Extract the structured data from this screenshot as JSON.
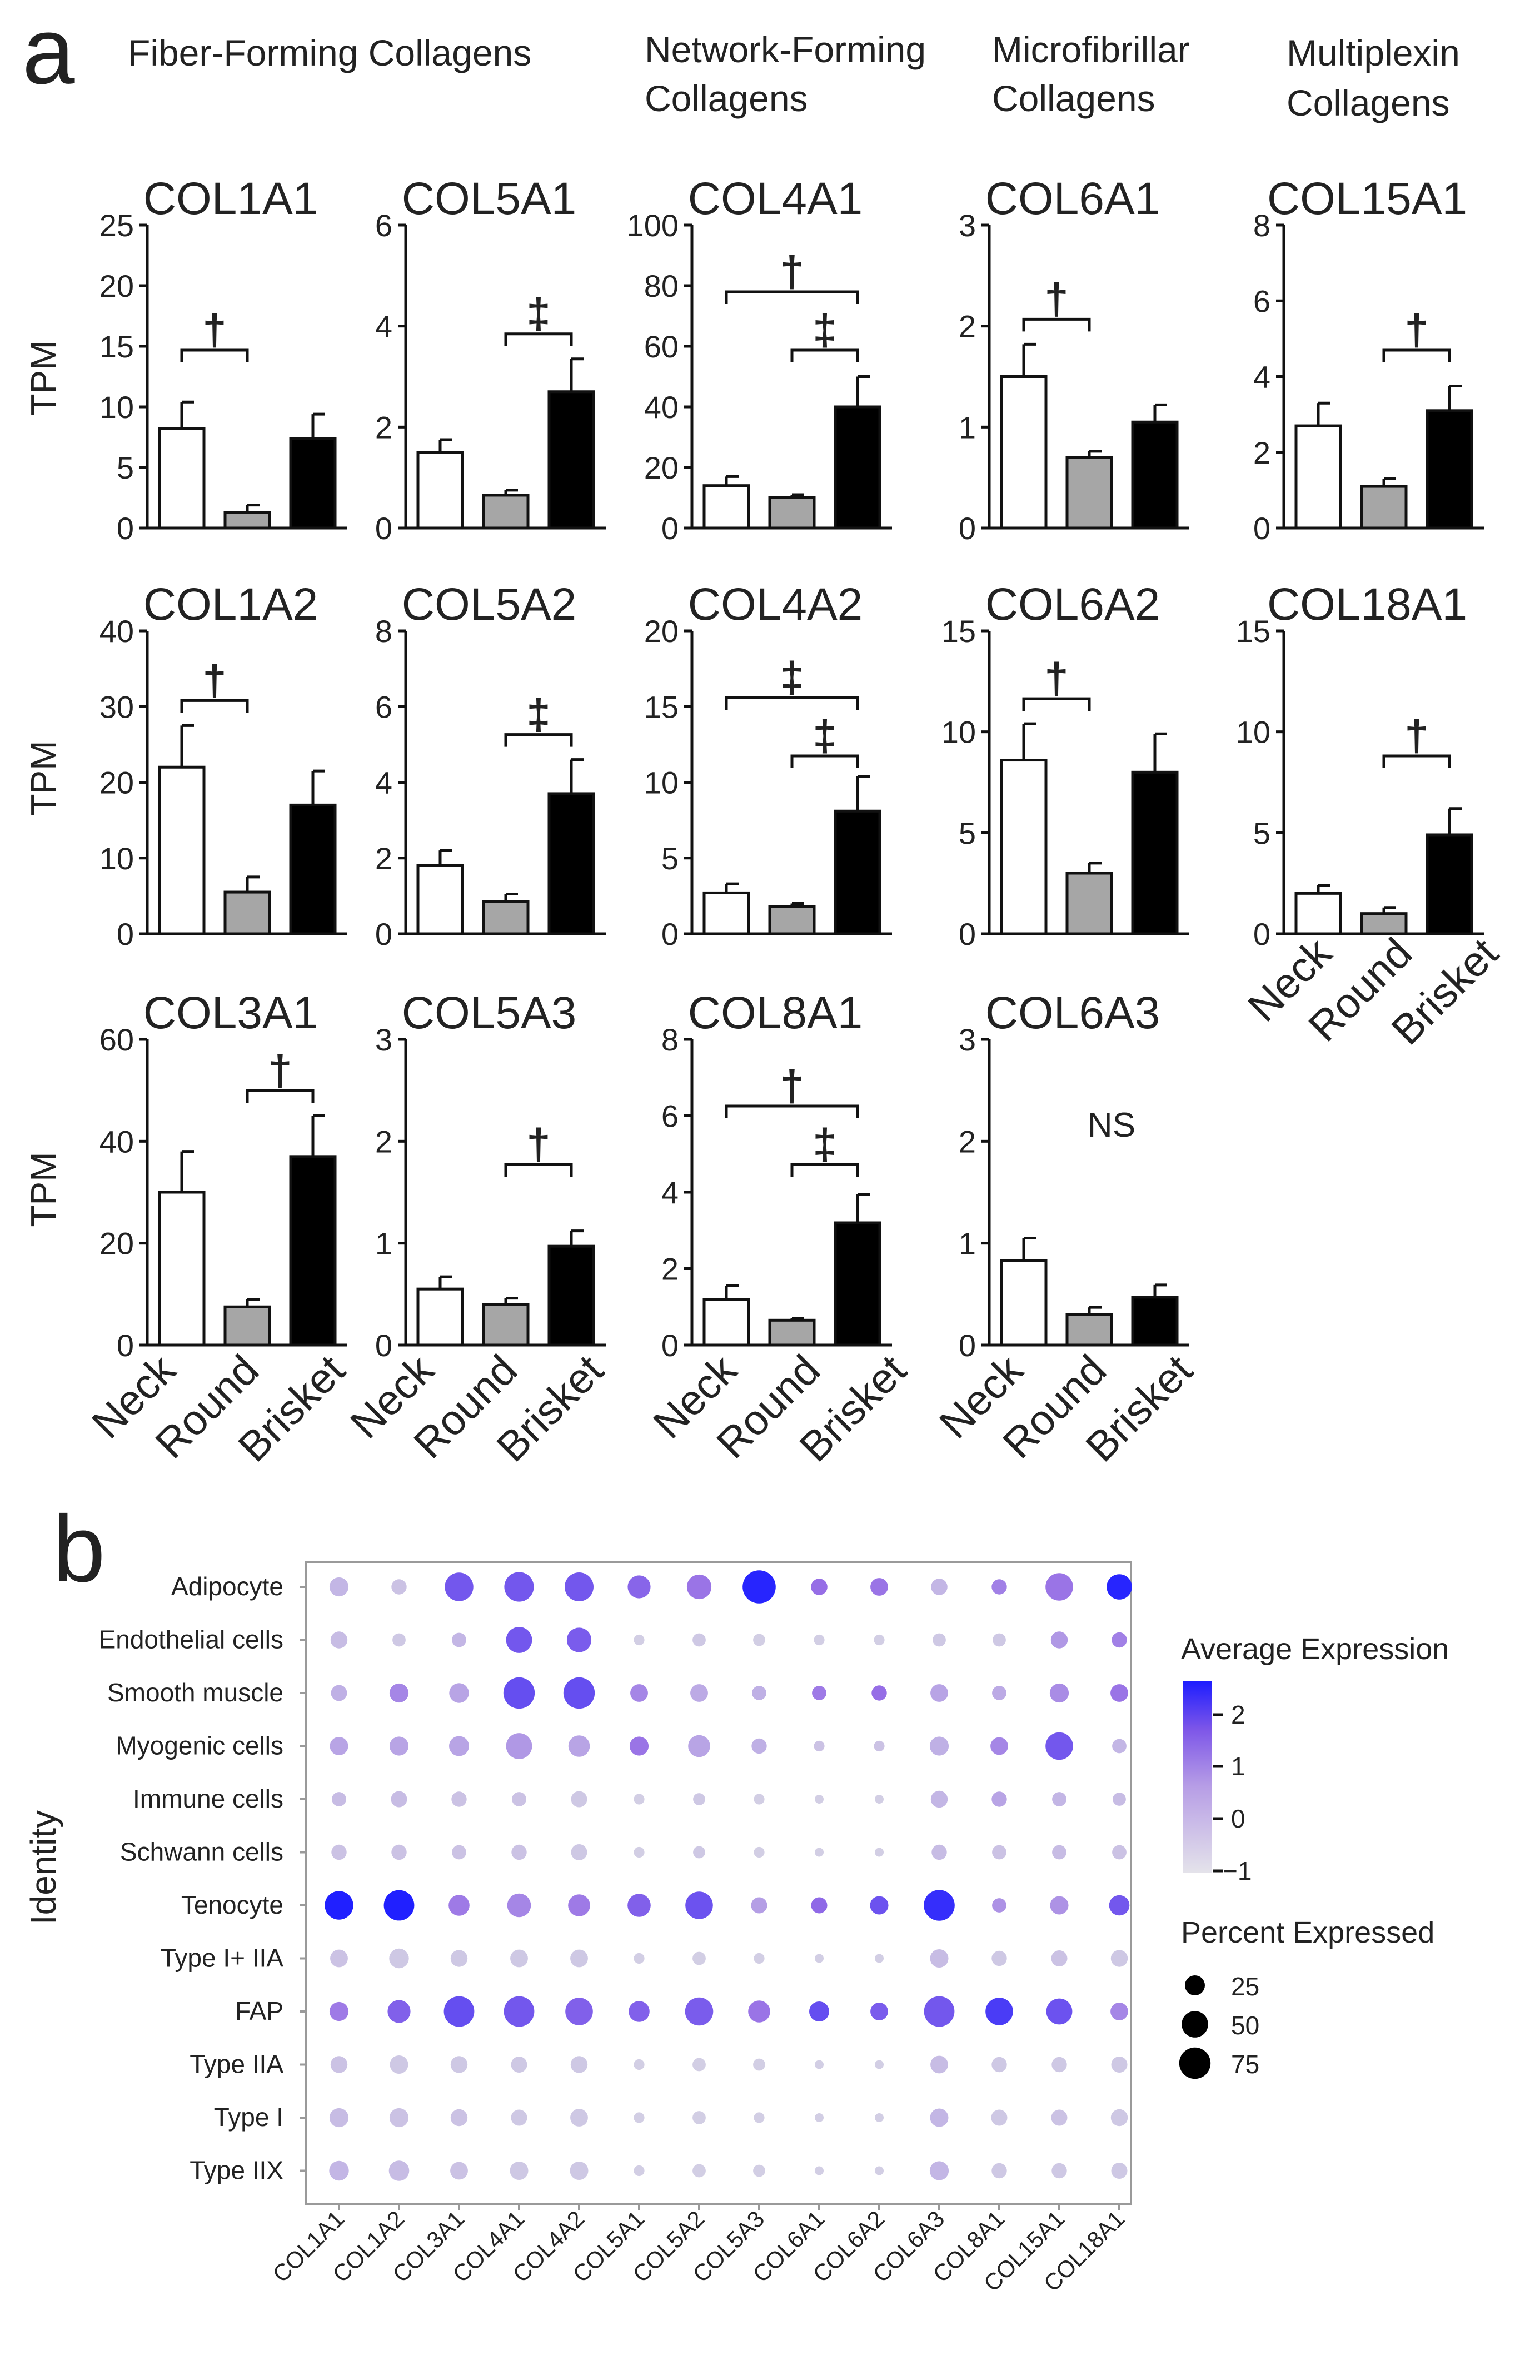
{
  "colors": {
    "neck": "#ffffff",
    "round": "#a6a6a6",
    "brisket": "#000000",
    "low": "#d6d4e4",
    "high": "#2020ff"
  },
  "panel_a": {
    "letter": "a",
    "group_titles": [
      {
        "lines": [
          "Fiber-Forming Collagens"
        ]
      },
      {
        "lines": [
          "Network-Forming",
          "Collagens"
        ]
      },
      {
        "lines": [
          "Microfibrillar",
          "Collagens"
        ]
      },
      {
        "lines": [
          "Multiplexin",
          "Collagens"
        ]
      }
    ],
    "y_label": "TPM",
    "categories": [
      "Neck",
      "Round",
      "Brisket"
    ],
    "ns_label": "NS"
  },
  "panel_b": {
    "letter": "b",
    "y_label": "Identity",
    "legend_color_title": "Average Expression",
    "legend_color_ticks": [
      "2",
      "1",
      "0",
      "−1"
    ],
    "legend_size_title": "Percent Expressed",
    "legend_size_values": [
      "25",
      "50",
      "75"
    ]
  },
  "chart_data": [
    {
      "type": "bar",
      "title": "COL1A1",
      "categories": [
        "Neck",
        "Round",
        "Brisket"
      ],
      "values": [
        8.2,
        1.3,
        7.4
      ],
      "errors": [
        2.2,
        0.6,
        2.0
      ],
      "ylim": [
        0,
        25
      ],
      "yticks": [
        0,
        5,
        10,
        15,
        20,
        25
      ],
      "brackets": [
        {
          "from": 0,
          "to": 1,
          "symbol": "†"
        }
      ]
    },
    {
      "type": "bar",
      "title": "COL5A1",
      "categories": [
        "Neck",
        "Round",
        "Brisket"
      ],
      "values": [
        1.5,
        0.65,
        2.7
      ],
      "errors": [
        0.25,
        0.1,
        0.65
      ],
      "ylim": [
        0,
        6
      ],
      "yticks": [
        0,
        2,
        4,
        6
      ],
      "brackets": [
        {
          "from": 1,
          "to": 2,
          "symbol": "‡"
        }
      ]
    },
    {
      "type": "bar",
      "title": "COL4A1",
      "categories": [
        "Neck",
        "Round",
        "Brisket"
      ],
      "values": [
        14,
        10,
        40
      ],
      "errors": [
        3,
        1,
        10
      ],
      "ylim": [
        0,
        100
      ],
      "yticks": [
        0,
        20,
        40,
        60,
        80,
        100
      ],
      "brackets": [
        {
          "from": 0,
          "to": 2,
          "symbol": "†"
        },
        {
          "from": 1,
          "to": 2,
          "symbol": "‡"
        }
      ]
    },
    {
      "type": "bar",
      "title": "COL6A1",
      "categories": [
        "Neck",
        "Round",
        "Brisket"
      ],
      "values": [
        1.5,
        0.7,
        1.05
      ],
      "errors": [
        0.32,
        0.06,
        0.17
      ],
      "ylim": [
        0,
        3
      ],
      "yticks": [
        0,
        1,
        2,
        3
      ],
      "brackets": [
        {
          "from": 0,
          "to": 1,
          "symbol": "†"
        }
      ]
    },
    {
      "type": "bar",
      "title": "COL15A1",
      "categories": [
        "Neck",
        "Round",
        "Brisket"
      ],
      "values": [
        2.7,
        1.1,
        3.1
      ],
      "errors": [
        0.6,
        0.2,
        0.65
      ],
      "ylim": [
        0,
        8
      ],
      "yticks": [
        0,
        2,
        4,
        6,
        8
      ],
      "brackets": [
        {
          "from": 1,
          "to": 2,
          "symbol": "†"
        }
      ]
    },
    {
      "type": "bar",
      "title": "COL1A2",
      "categories": [
        "Neck",
        "Round",
        "Brisket"
      ],
      "values": [
        22,
        5.5,
        17
      ],
      "errors": [
        5.5,
        2,
        4.5
      ],
      "ylim": [
        0,
        40
      ],
      "yticks": [
        0,
        10,
        20,
        30,
        40
      ],
      "brackets": [
        {
          "from": 0,
          "to": 1,
          "symbol": "†"
        }
      ]
    },
    {
      "type": "bar",
      "title": "COL5A2",
      "categories": [
        "Neck",
        "Round",
        "Brisket"
      ],
      "values": [
        1.8,
        0.85,
        3.7
      ],
      "errors": [
        0.4,
        0.2,
        0.9
      ],
      "ylim": [
        0,
        8
      ],
      "yticks": [
        0,
        2,
        4,
        6,
        8
      ],
      "brackets": [
        {
          "from": 1,
          "to": 2,
          "symbol": "‡"
        }
      ]
    },
    {
      "type": "bar",
      "title": "COL4A2",
      "categories": [
        "Neck",
        "Round",
        "Brisket"
      ],
      "values": [
        2.7,
        1.8,
        8.1
      ],
      "errors": [
        0.6,
        0.2,
        2.3
      ],
      "ylim": [
        0,
        20
      ],
      "yticks": [
        0,
        5,
        10,
        15,
        20
      ],
      "brackets": [
        {
          "from": 0,
          "to": 2,
          "symbol": "‡"
        },
        {
          "from": 1,
          "to": 2,
          "symbol": "‡"
        }
      ]
    },
    {
      "type": "bar",
      "title": "COL6A2",
      "categories": [
        "Neck",
        "Round",
        "Brisket"
      ],
      "values": [
        8.6,
        3.0,
        8.0
      ],
      "errors": [
        1.8,
        0.5,
        1.9
      ],
      "ylim": [
        0,
        15
      ],
      "yticks": [
        0,
        5,
        10,
        15
      ],
      "brackets": [
        {
          "from": 0,
          "to": 1,
          "symbol": "†"
        }
      ]
    },
    {
      "type": "bar",
      "title": "COL18A1",
      "categories": [
        "Neck",
        "Round",
        "Brisket"
      ],
      "values": [
        2.0,
        1.0,
        4.9
      ],
      "errors": [
        0.4,
        0.3,
        1.3
      ],
      "ylim": [
        0,
        15
      ],
      "yticks": [
        0,
        5,
        10,
        15
      ],
      "brackets": [
        {
          "from": 1,
          "to": 2,
          "symbol": "†"
        }
      ]
    },
    {
      "type": "bar",
      "title": "COL3A1",
      "categories": [
        "Neck",
        "Round",
        "Brisket"
      ],
      "values": [
        30,
        7.5,
        37
      ],
      "errors": [
        8,
        1.5,
        8
      ],
      "ylim": [
        0,
        60
      ],
      "yticks": [
        0,
        20,
        40,
        60
      ],
      "brackets": [
        {
          "from": 1,
          "to": 2,
          "symbol": "†"
        }
      ]
    },
    {
      "type": "bar",
      "title": "COL5A3",
      "categories": [
        "Neck",
        "Round",
        "Brisket"
      ],
      "values": [
        0.55,
        0.4,
        0.97
      ],
      "errors": [
        0.12,
        0.06,
        0.15
      ],
      "ylim": [
        0,
        3
      ],
      "yticks": [
        0,
        1,
        2,
        3
      ],
      "brackets": [
        {
          "from": 1,
          "to": 2,
          "symbol": "†"
        }
      ]
    },
    {
      "type": "bar",
      "title": "COL8A1",
      "categories": [
        "Neck",
        "Round",
        "Brisket"
      ],
      "values": [
        1.2,
        0.65,
        3.2
      ],
      "errors": [
        0.35,
        0.05,
        0.75
      ],
      "ylim": [
        0,
        8
      ],
      "yticks": [
        0,
        2,
        4,
        6,
        8
      ],
      "brackets": [
        {
          "from": 0,
          "to": 2,
          "symbol": "†"
        },
        {
          "from": 1,
          "to": 2,
          "symbol": "‡"
        }
      ]
    },
    {
      "type": "bar",
      "title": "COL6A3",
      "categories": [
        "Neck",
        "Round",
        "Brisket"
      ],
      "values": [
        0.83,
        0.3,
        0.47
      ],
      "errors": [
        0.22,
        0.07,
        0.12
      ],
      "ylim": [
        0,
        3
      ],
      "yticks": [
        0,
        1,
        2,
        3
      ],
      "brackets": [],
      "ns": true
    },
    {
      "type": "dot",
      "title": "",
      "x_categories": [
        "COL1A1",
        "COL1A2",
        "COL3A1",
        "COL4A1",
        "COL4A2",
        "COL5A1",
        "COL5A2",
        "COL5A3",
        "COL6A1",
        "COL6A2",
        "COL6A3",
        "COL8A1",
        "COL15A1",
        "COL18A1"
      ],
      "y_categories": [
        "Adipocyte",
        "Endothelial cells",
        "Smooth muscle",
        "Myogenic cells",
        "Immune cells",
        "Schwann cells",
        "Tenocyte",
        "Type I+ IIA",
        "FAP",
        "Type IIA",
        "Type I",
        "Type IIX"
      ],
      "color_range": [
        -1,
        2.4
      ],
      "size_range": [
        0,
        100
      ],
      "avg_expression": [
        [
          -0.5,
          -0.7,
          1.2,
          1.2,
          1.2,
          0.9,
          0.6,
          2.3,
          0.7,
          0.6,
          -0.5,
          0.4,
          0.6,
          2.3
        ],
        [
          -0.6,
          -0.8,
          -0.5,
          1.2,
          1.1,
          -0.9,
          -0.8,
          -0.9,
          -0.9,
          -0.9,
          -0.8,
          -0.8,
          0.0,
          0.4
        ],
        [
          -0.4,
          0.3,
          -0.2,
          1.4,
          1.4,
          0.3,
          -0.3,
          -0.4,
          0.5,
          0.7,
          -0.2,
          -0.3,
          0.2,
          0.6
        ],
        [
          -0.2,
          -0.2,
          -0.2,
          0.0,
          -0.2,
          0.6,
          -0.2,
          -0.4,
          -0.7,
          -0.7,
          -0.4,
          0.3,
          1.2,
          -0.5
        ],
        [
          -0.6,
          -0.6,
          -0.7,
          -0.7,
          -0.8,
          -0.9,
          -0.8,
          -0.9,
          -0.9,
          -0.9,
          -0.5,
          -0.2,
          -0.5,
          -0.6
        ],
        [
          -0.7,
          -0.7,
          -0.7,
          -0.7,
          -0.8,
          -0.9,
          -0.8,
          -0.9,
          -0.9,
          -0.9,
          -0.6,
          -0.7,
          -0.6,
          -0.7
        ],
        [
          2.4,
          2.4,
          0.5,
          0.3,
          0.5,
          1.0,
          1.3,
          -0.1,
          0.8,
          1.3,
          2.1,
          0.1,
          0.1,
          1.2
        ],
        [
          -0.7,
          -0.8,
          -0.8,
          -0.8,
          -0.8,
          -0.9,
          -0.9,
          -0.9,
          -0.9,
          -0.9,
          -0.6,
          -0.8,
          -0.7,
          -0.8
        ],
        [
          0.5,
          1.0,
          1.4,
          1.2,
          1.0,
          1.0,
          1.1,
          0.6,
          1.4,
          1.1,
          1.2,
          1.8,
          1.3,
          0.3
        ],
        [
          -0.7,
          -0.8,
          -0.8,
          -0.8,
          -0.8,
          -0.9,
          -0.9,
          -0.9,
          -0.9,
          -0.9,
          -0.6,
          -0.8,
          -0.8,
          -0.8
        ],
        [
          -0.6,
          -0.7,
          -0.7,
          -0.8,
          -0.8,
          -0.9,
          -0.9,
          -0.9,
          -0.9,
          -0.9,
          -0.5,
          -0.8,
          -0.7,
          -0.8
        ],
        [
          -0.5,
          -0.6,
          -0.7,
          -0.8,
          -0.8,
          -0.9,
          -0.9,
          -0.9,
          -0.9,
          -0.9,
          -0.5,
          -0.8,
          -0.8,
          -0.8
        ]
      ],
      "pct_expressed": [
        [
          22,
          12,
          60,
          65,
          62,
          35,
          42,
          85,
          15,
          18,
          15,
          12,
          55,
          45
        ],
        [
          16,
          8,
          10,
          48,
          42,
          4,
          8,
          6,
          4,
          4,
          8,
          8,
          16,
          12
        ],
        [
          14,
          22,
          24,
          75,
          75,
          18,
          18,
          10,
          10,
          12,
          18,
          10,
          22,
          18
        ],
        [
          20,
          22,
          25,
          48,
          30,
          22,
          32,
          12,
          4,
          4,
          22,
          18,
          55,
          10
        ],
        [
          10,
          14,
          12,
          10,
          14,
          4,
          6,
          4,
          2,
          2,
          16,
          12,
          10,
          8
        ],
        [
          12,
          12,
          10,
          12,
          14,
          4,
          6,
          4,
          2,
          2,
          12,
          10,
          10,
          10
        ],
        [
          60,
          70,
          28,
          38,
          32,
          36,
          55,
          14,
          14,
          20,
          72,
          10,
          20,
          26
        ],
        [
          18,
          24,
          16,
          18,
          18,
          4,
          8,
          4,
          2,
          2,
          20,
          12,
          14,
          16
        ],
        [
          22,
          35,
          70,
          70,
          55,
          28,
          58,
          32,
          25,
          18,
          70,
          55,
          48,
          18
        ],
        [
          16,
          20,
          16,
          14,
          16,
          4,
          8,
          6,
          2,
          2,
          18,
          12,
          12,
          14
        ],
        [
          22,
          22,
          16,
          14,
          18,
          4,
          8,
          4,
          2,
          2,
          20,
          14,
          14,
          16
        ],
        [
          24,
          26,
          18,
          20,
          20,
          4,
          8,
          6,
          2,
          2,
          22,
          12,
          12,
          14
        ]
      ]
    }
  ]
}
